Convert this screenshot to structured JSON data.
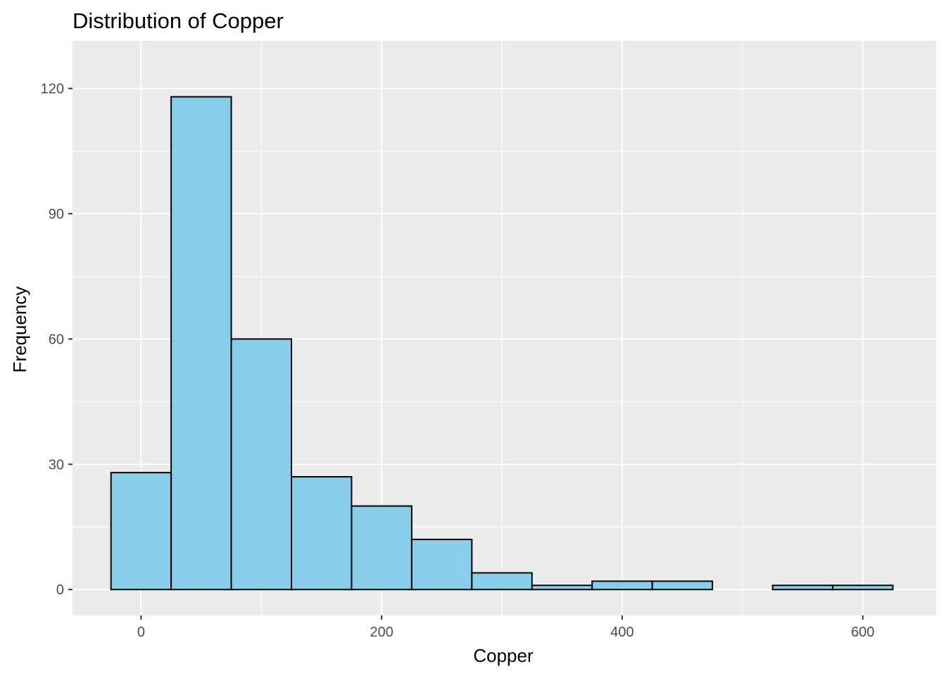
{
  "chart_data": {
    "type": "histogram",
    "title": "Distribution of Copper",
    "xlabel": "Copper",
    "ylabel": "Frequency",
    "xlim": [
      -57,
      661
    ],
    "ylim": [
      -6.2,
      131.4
    ],
    "x_ticks": [
      0,
      200,
      400,
      600
    ],
    "y_ticks": [
      0,
      30,
      60,
      90,
      120
    ],
    "x_tick_labels": [
      "0",
      "200",
      "400",
      "600"
    ],
    "y_tick_labels": [
      "0",
      "30",
      "60",
      "90",
      "120"
    ],
    "binwidth": 50,
    "bins": [
      {
        "start": -25,
        "end": 25,
        "count": 28
      },
      {
        "start": 25,
        "end": 75,
        "count": 118
      },
      {
        "start": 75,
        "end": 125,
        "count": 60
      },
      {
        "start": 125,
        "end": 175,
        "count": 27
      },
      {
        "start": 175,
        "end": 225,
        "count": 20
      },
      {
        "start": 225,
        "end": 275,
        "count": 12
      },
      {
        "start": 275,
        "end": 325,
        "count": 4
      },
      {
        "start": 325,
        "end": 375,
        "count": 1
      },
      {
        "start": 375,
        "end": 425,
        "count": 2
      },
      {
        "start": 425,
        "end": 475,
        "count": 2
      },
      {
        "start": 475,
        "end": 525,
        "count": 0
      },
      {
        "start": 525,
        "end": 575,
        "count": 1
      },
      {
        "start": 575,
        "end": 625,
        "count": 1
      }
    ],
    "grid": true,
    "colors": {
      "panel": "#EBEBEB",
      "grid": "#FFFFFF",
      "bar_fill": "#87CEEB",
      "bar_stroke": "#000000",
      "tick": "#333333"
    }
  }
}
